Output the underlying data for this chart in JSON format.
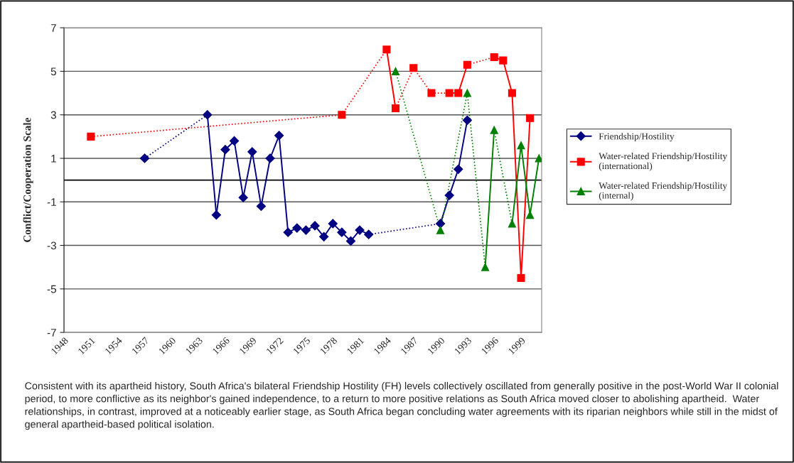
{
  "chart_data": {
    "type": "line",
    "ylabel": "Conflict/Cooperation Scale",
    "xlim": [
      1948,
      2001.3
    ],
    "xticks": [
      1948,
      1951,
      1954,
      1957,
      1960,
      1963,
      1966,
      1969,
      1972,
      1975,
      1978,
      1981,
      1984,
      1987,
      1990,
      1993,
      1996,
      1999
    ],
    "ylim": [
      -7,
      7
    ],
    "yticks": [
      -7,
      -5,
      -3,
      -1,
      1,
      3,
      5,
      7
    ],
    "grid": "y",
    "legend": "right",
    "line_style": "solid",
    "ref_lines": [
      {
        "axis": "y",
        "value": 0,
        "color": "#000000"
      }
    ],
    "series": [
      {
        "name": "Friendship/Hostility",
        "color": "#000080",
        "marker": "diamond",
        "x": [
          1957,
          1964,
          1965,
          1966,
          1967,
          1968,
          1969,
          1970,
          1971,
          1972,
          1973,
          1974,
          1975,
          1976,
          1977,
          1978,
          1979,
          1980,
          1981,
          1982,
          1990,
          1991,
          1992,
          1993
        ],
        "values": [
          1.0,
          3.0,
          -1.6,
          1.4,
          1.8,
          -0.8,
          1.3,
          -1.2,
          1.0,
          2.05,
          -2.4,
          -2.2,
          -2.3,
          -2.1,
          -2.6,
          -2.0,
          -2.4,
          -2.8,
          -2.3,
          -2.5,
          -2.0,
          -0.7,
          0.5,
          2.75
        ]
      },
      {
        "name": "Water-related Friendship/Hostility (international)",
        "color": "#ff0000",
        "marker": "square",
        "x": [
          1951,
          1979,
          1984,
          1985,
          1987,
          1989,
          1991,
          1992,
          1993,
          1996,
          1997,
          1998,
          1999,
          2000
        ],
        "values": [
          2.0,
          3.0,
          6.0,
          3.3,
          5.15,
          4.0,
          4.0,
          4.0,
          5.3,
          5.65,
          5.5,
          4.0,
          -4.5,
          2.85
        ]
      },
      {
        "name": "Water-related Friendship/Hostility (internal)",
        "color": "#008000",
        "marker": "triangle",
        "x": [
          1985,
          1990,
          1993,
          1995,
          1996,
          1998,
          1999,
          2000,
          2001
        ],
        "values": [
          5.0,
          -2.3,
          4.0,
          -4.0,
          2.3,
          -2.0,
          1.6,
          -1.6,
          1.0
        ]
      }
    ],
    "annotations": [
      "Consistent with its apartheid history, South Africa's bilateral Friendship Hostility (FH) levels collectively oscillated from generally positive in the post-World War II colonial period, to more conflictive as its neighbor's gained independence, to a return to more positive relations as South Africa moved closer to abolishing apartheid.  Water relationships, in contrast, improved at a noticeably earlier stage, as South Africa began concluding water agreements with its riparian neighbors while still in the midst of general apartheid-based political isolation."
    ]
  }
}
